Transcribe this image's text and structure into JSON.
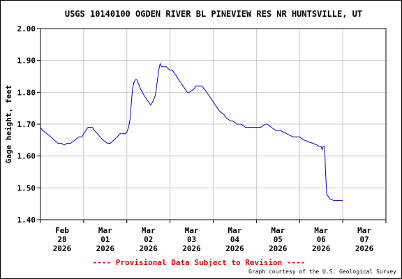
{
  "chart_data": {
    "type": "line",
    "title": "USGS 10140100 OGDEN RIVER BL PINEVIEW RES NR HUNTSVILLE, UT",
    "ylabel": "Gage height, feet",
    "xlabel": "",
    "ylim": [
      1.4,
      2.0
    ],
    "y_ticks": [
      1.4,
      1.5,
      1.6,
      1.7,
      1.8,
      1.9,
      2.0
    ],
    "y_tick_labels": [
      "1.40",
      "1.50",
      "1.60",
      "1.70",
      "1.80",
      "1.90",
      "2.00"
    ],
    "xlim": [
      0,
      8
    ],
    "x_ticks": [
      {
        "x": 0.5,
        "lines": [
          "Feb",
          "28",
          "2026"
        ]
      },
      {
        "x": 1.5,
        "lines": [
          "Mar",
          "01",
          "2026"
        ]
      },
      {
        "x": 2.5,
        "lines": [
          "Mar",
          "02",
          "2026"
        ]
      },
      {
        "x": 3.5,
        "lines": [
          "Mar",
          "03",
          "2026"
        ]
      },
      {
        "x": 4.5,
        "lines": [
          "Mar",
          "04",
          "2026"
        ]
      },
      {
        "x": 5.5,
        "lines": [
          "Mar",
          "05",
          "2026"
        ]
      },
      {
        "x": 6.5,
        "lines": [
          "Mar",
          "06",
          "2026"
        ]
      },
      {
        "x": 7.5,
        "lines": [
          "Mar",
          "07",
          "2026"
        ]
      }
    ],
    "grid": true,
    "series": [
      {
        "color": "#0000cc",
        "x": [
          0.0,
          0.05,
          0.1,
          0.15,
          0.24,
          0.32,
          0.4,
          0.48,
          0.55,
          0.62,
          0.7,
          0.8,
          0.88,
          0.96,
          1.0,
          1.05,
          1.1,
          1.15,
          1.2,
          1.25,
          1.32,
          1.38,
          1.45,
          1.55,
          1.62,
          1.7,
          1.78,
          1.84,
          1.88,
          1.92,
          1.96,
          2.0,
          2.04,
          2.08,
          2.1,
          2.13,
          2.16,
          2.2,
          2.23,
          2.26,
          2.29,
          2.32,
          2.36,
          2.4,
          2.45,
          2.5,
          2.55,
          2.6,
          2.66,
          2.71,
          2.74,
          2.77,
          2.8,
          2.86,
          2.92,
          2.95,
          3.0,
          3.05,
          3.1,
          3.15,
          3.2,
          3.25,
          3.3,
          3.35,
          3.4,
          3.45,
          3.55,
          3.6,
          3.68,
          3.73,
          3.8,
          3.85,
          3.9,
          3.95,
          4.0,
          4.05,
          4.1,
          4.15,
          4.2,
          4.25,
          4.3,
          4.35,
          4.4,
          4.45,
          4.55,
          4.65,
          4.75,
          4.9,
          5.0,
          5.1,
          5.2,
          5.25,
          5.35,
          5.45,
          5.5,
          5.55,
          5.7,
          5.85,
          6.0,
          6.1,
          6.2,
          6.3,
          6.4,
          6.45,
          6.5,
          6.52,
          6.55,
          6.58,
          6.6,
          6.63,
          6.7,
          6.8,
          6.9,
          7.0
        ],
        "values": [
          1.69,
          1.68,
          1.675,
          1.67,
          1.66,
          1.65,
          1.64,
          1.64,
          1.635,
          1.64,
          1.64,
          1.65,
          1.66,
          1.66,
          1.67,
          1.68,
          1.69,
          1.69,
          1.69,
          1.68,
          1.67,
          1.66,
          1.65,
          1.64,
          1.64,
          1.65,
          1.66,
          1.67,
          1.67,
          1.67,
          1.67,
          1.675,
          1.69,
          1.72,
          1.76,
          1.81,
          1.83,
          1.84,
          1.84,
          1.83,
          1.82,
          1.81,
          1.8,
          1.79,
          1.78,
          1.77,
          1.76,
          1.77,
          1.79,
          1.84,
          1.87,
          1.89,
          1.88,
          1.88,
          1.88,
          1.875,
          1.87,
          1.87,
          1.86,
          1.85,
          1.84,
          1.83,
          1.82,
          1.81,
          1.8,
          1.8,
          1.81,
          1.82,
          1.82,
          1.82,
          1.81,
          1.8,
          1.79,
          1.78,
          1.77,
          1.76,
          1.75,
          1.74,
          1.735,
          1.73,
          1.72,
          1.715,
          1.71,
          1.71,
          1.7,
          1.7,
          1.69,
          1.69,
          1.69,
          1.69,
          1.7,
          1.7,
          1.69,
          1.68,
          1.68,
          1.68,
          1.67,
          1.66,
          1.66,
          1.65,
          1.645,
          1.64,
          1.635,
          1.63,
          1.63,
          1.62,
          1.63,
          1.63,
          1.55,
          1.48,
          1.465,
          1.46,
          1.46,
          1.46
        ]
      }
    ],
    "footer_notice": "---- Provisional Data Subject to Revision ----",
    "credit": "Graph courtesy of the U.S. Geological Survey"
  }
}
